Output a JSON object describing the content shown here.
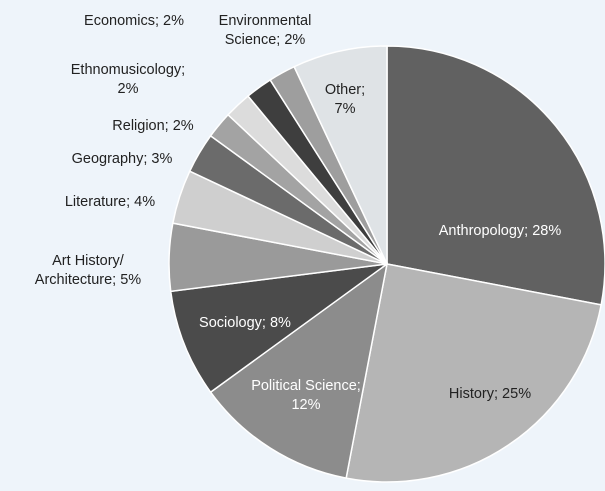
{
  "chart_data": {
    "type": "pie",
    "slices": [
      {
        "label": "Anthropology; 28%",
        "value": 28,
        "color": "#616161",
        "text_color": "#ffffff"
      },
      {
        "label": "History; 25%",
        "value": 25,
        "color": "#b5b5b5",
        "text_color": "#222222"
      },
      {
        "label": "Political Science; 12%",
        "value": 12,
        "color": "#8c8c8c",
        "text_color": "#ffffff"
      },
      {
        "label": "Sociology; 8%",
        "value": 8,
        "color": "#4b4b4b",
        "text_color": "#ffffff"
      },
      {
        "label": "Art History/ Architecture; 5%",
        "value": 5,
        "color": "#9a9a9a",
        "text_color": "#222222"
      },
      {
        "label": "Literature; 4%",
        "value": 4,
        "color": "#cfcfcf",
        "text_color": "#222222"
      },
      {
        "label": "Geography; 3%",
        "value": 3,
        "color": "#6b6b6b",
        "text_color": "#222222"
      },
      {
        "label": "Religion; 2%",
        "value": 2,
        "color": "#a3a3a3",
        "text_color": "#222222"
      },
      {
        "label": "Ethnomusicology; 2%",
        "value": 2,
        "color": "#dcdcdc",
        "text_color": "#222222"
      },
      {
        "label": "Economics; 2%",
        "value": 2,
        "color": "#3e3e3e",
        "text_color": "#222222"
      },
      {
        "label": "Environmental Science; 2%",
        "value": 2,
        "color": "#9e9e9e",
        "text_color": "#222222"
      },
      {
        "label": "Other; 7%",
        "value": 7,
        "color": "#dfe3e6",
        "text_color": "#222222"
      }
    ],
    "legend": "none"
  }
}
